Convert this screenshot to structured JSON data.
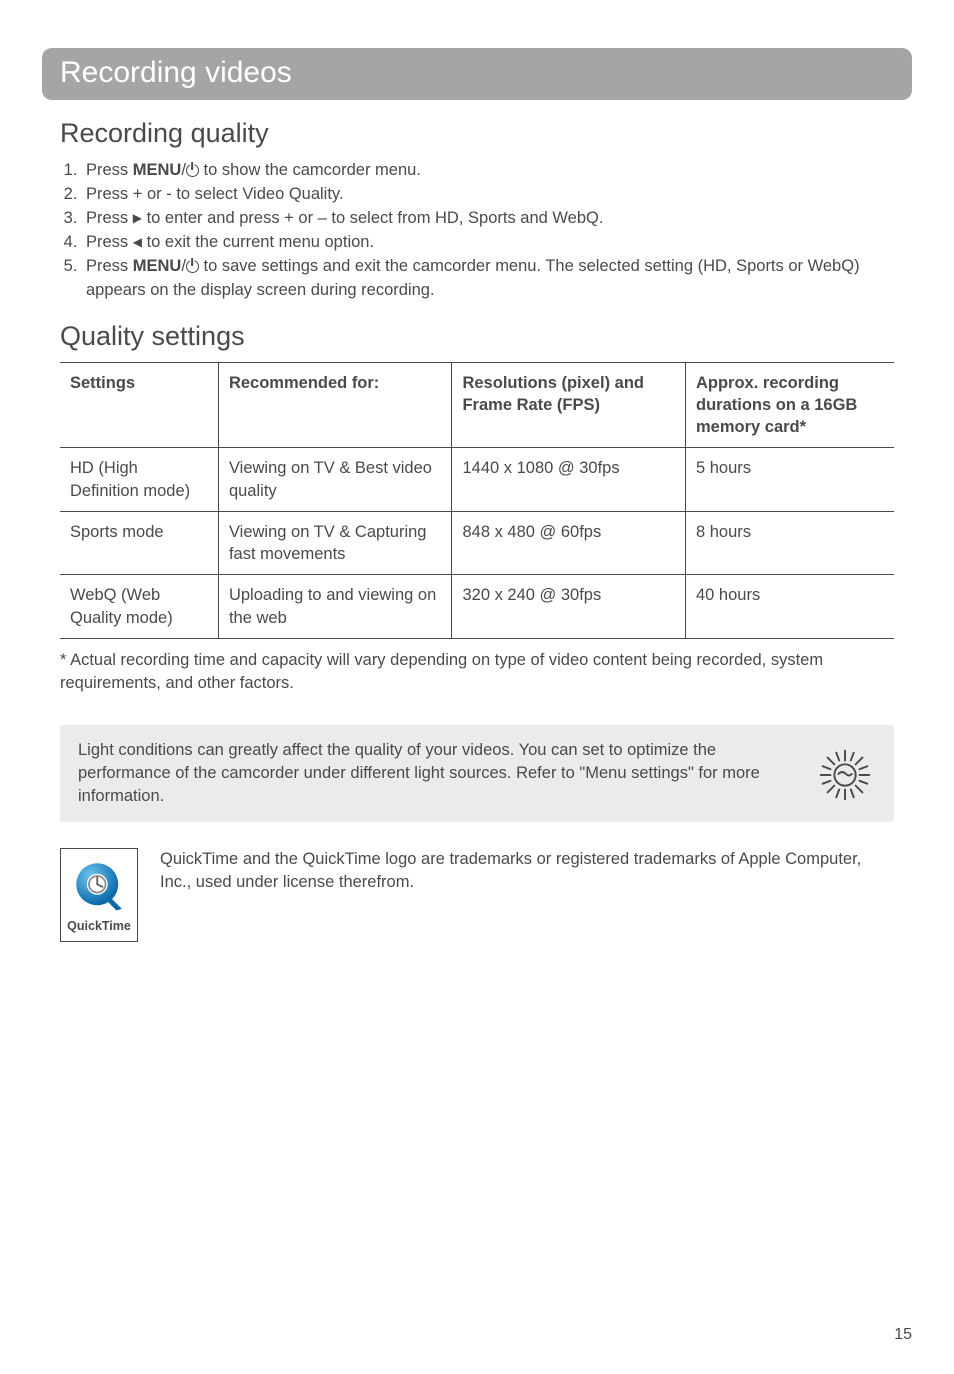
{
  "title_bar": "Recording videos",
  "sections": {
    "recording_quality": {
      "heading": "Recording quality",
      "steps": [
        {
          "prefix": "Press ",
          "bold": "MENU",
          "slash_power": true,
          "suffix": " to show the camcorder menu."
        },
        {
          "text": "Press + or - to select Video Quality."
        },
        {
          "prefix": "Press ",
          "tri": "right",
          "suffix": " to enter and press + or – to select from HD, Sports and WebQ."
        },
        {
          "prefix": "Press ",
          "tri": "left",
          "suffix": " to exit the current menu option."
        },
        {
          "prefix": "Press ",
          "bold": "MENU",
          "slash_power": true,
          "suffix": "  to save settings and exit the camcorder menu. The selected setting (HD, Sports or WebQ) appears on the display screen during recording."
        }
      ]
    },
    "quality_settings": {
      "heading": "Quality settings",
      "table": {
        "headers": [
          "Settings",
          "Recommended for:",
          "Resolutions (pixel) and Frame Rate (FPS)",
          "Approx. recording durations on a 16GB memory card*"
        ],
        "col_widths": [
          "19%",
          "28%",
          "28%",
          "25%"
        ],
        "rows": [
          [
            "HD (High Definition mode)",
            "Viewing on TV & Best video quality",
            "1440 x 1080 @ 30fps",
            "5 hours"
          ],
          [
            "Sports mode",
            "Viewing on TV & Capturing fast movements",
            "848 x 480 @ 60fps",
            "8 hours"
          ],
          [
            "WebQ (Web Quality mode)",
            "Uploading to and viewing on the web",
            "320 x 240 @ 30fps",
            "40 hours"
          ]
        ]
      },
      "footnote": "* Actual recording time and capacity will vary depending on type of video content being recorded, system requirements, and other factors."
    },
    "tip": {
      "text": "Light conditions can greatly affect the quality of your videos. You can set to optimize the performance of the camcorder under different light sources. Refer to \"Menu settings\" for more information."
    },
    "trademark": {
      "logo_label": "QuickTime",
      "text": "QuickTime and the QuickTime logo are trademarks or registered trademarks of Apple Computer, Inc., used under license therefrom."
    }
  },
  "page_number": "15",
  "colors": {
    "bar_bg": "#a5a5a5",
    "bar_text": "#ffffff",
    "body_text": "#4a4a4a",
    "tip_bg": "#ebebeb",
    "qt_blue": "#1f8dd6",
    "qt_clock": "#6e6e6e"
  }
}
